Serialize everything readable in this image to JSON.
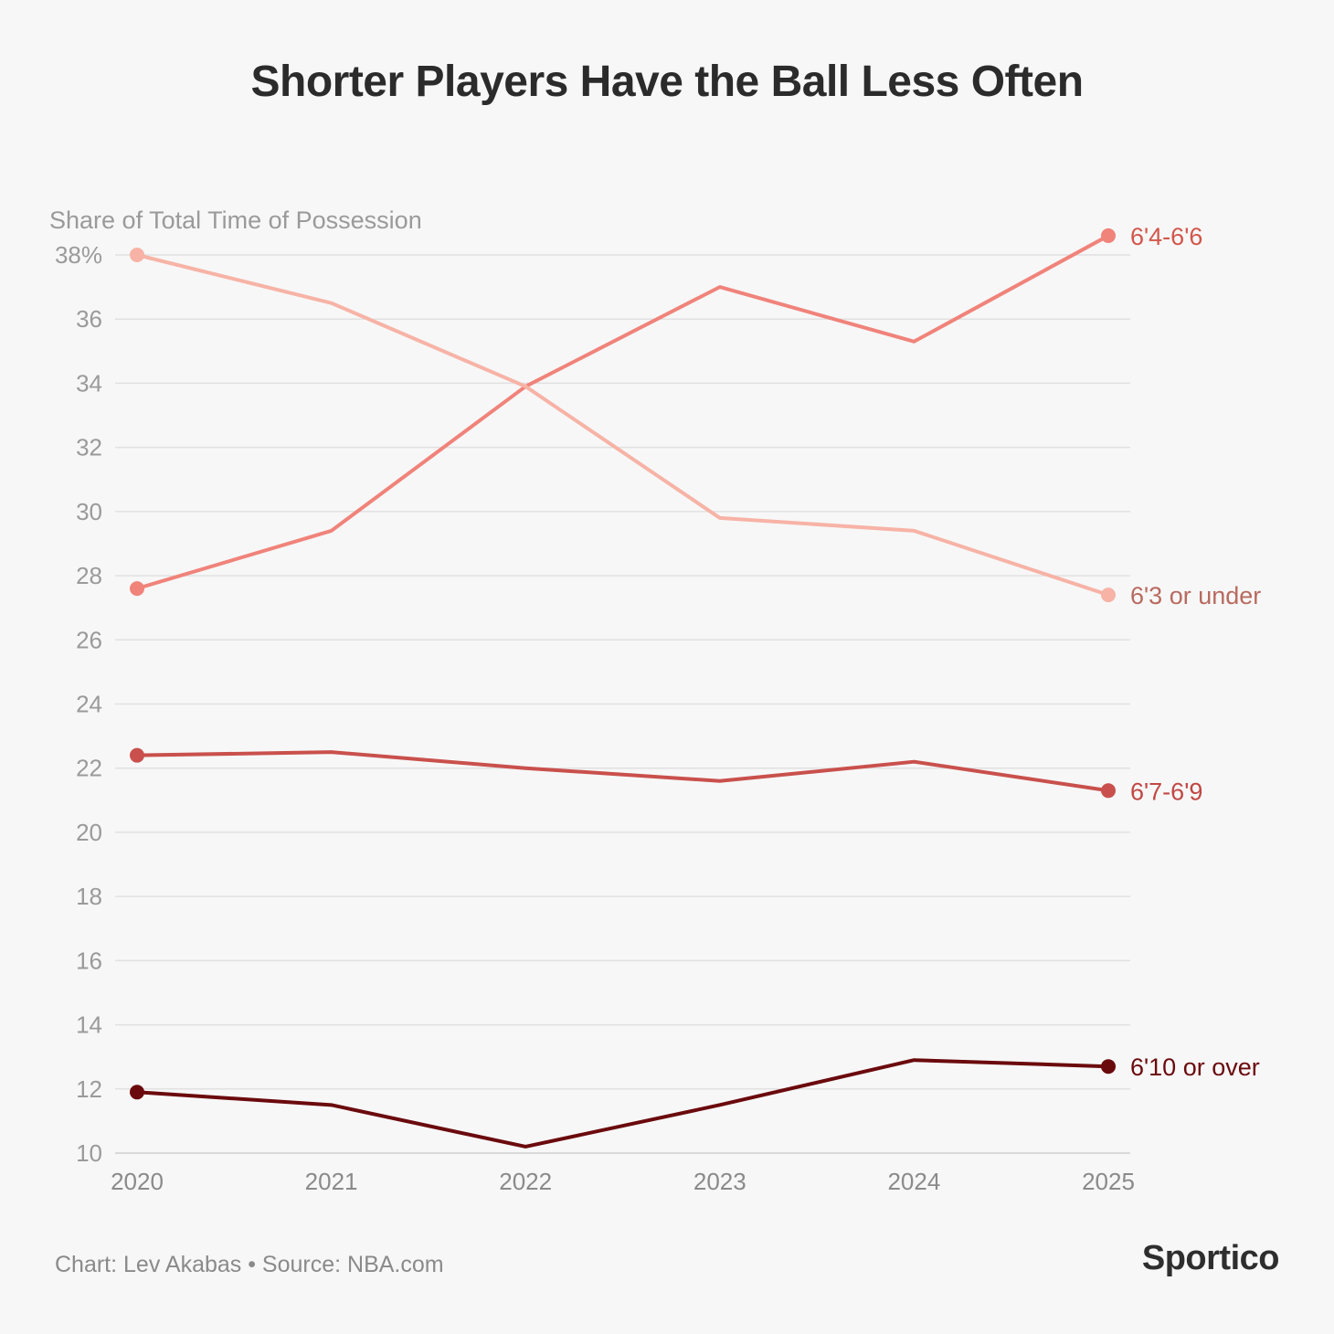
{
  "title": "Shorter Players Have the Ball Less Often",
  "footer": "Chart: Lev Akabas • Source: NBA.com",
  "brand": "Sportico",
  "chart_data": {
    "type": "line",
    "title": "Shorter Players Have the Ball Less Often",
    "ylabel": "Share of Total Time of Possession",
    "ylim": [
      10,
      38
    ],
    "yticks": [
      38,
      36,
      34,
      32,
      30,
      28,
      26,
      24,
      22,
      20,
      18,
      16,
      14,
      12,
      10
    ],
    "ytick_labels": [
      "38%",
      "36",
      "34",
      "32",
      "30",
      "28",
      "26",
      "24",
      "22",
      "20",
      "18",
      "16",
      "14",
      "12",
      "10"
    ],
    "x": [
      "2020",
      "2021",
      "2022",
      "2023",
      "2024",
      "2025"
    ],
    "grid": true,
    "legend": "direct labels at line ends",
    "series": [
      {
        "name": "6'4-6'6",
        "color": "#f0837a",
        "label_color": "#d2564b",
        "values": [
          27.6,
          29.4,
          33.9,
          37.0,
          35.3,
          38.6
        ]
      },
      {
        "name": "6'3 or under",
        "color": "#f7b3a6",
        "label_color": "#b86a5f",
        "values": [
          38.0,
          36.5,
          33.9,
          29.8,
          29.4,
          27.4
        ]
      },
      {
        "name": "6'7-6'9",
        "color": "#c9504c",
        "label_color": "#c04743",
        "values": [
          22.4,
          22.5,
          22.0,
          21.6,
          22.2,
          21.3
        ]
      },
      {
        "name": "6'10 or over",
        "color": "#6b0a0d",
        "label_color": "#6b0a0d",
        "values": [
          11.9,
          11.5,
          10.2,
          11.5,
          12.9,
          12.7
        ]
      }
    ]
  }
}
